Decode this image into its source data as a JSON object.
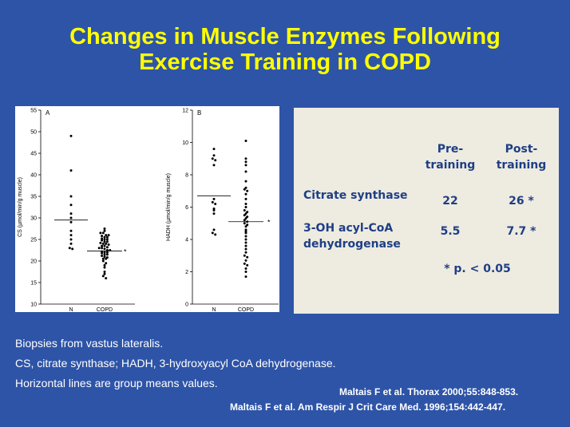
{
  "slide": {
    "title_line1": "Changes in Muscle Enzymes Following",
    "title_line2": "Exercise Training in COPD",
    "notes": [
      "Biopsies from vastus lateralis.",
      "CS, citrate synthase;  HADH,  3-hydroxyacyl CoA dehydrogenase.",
      "Horizontal  lines are group  means values."
    ],
    "refs": [
      "Maltais F et al.   Thorax 2000;55:848-853.",
      "Maltais F et al. Am Respir J Crit Care Med. 1996;154:442-447."
    ]
  },
  "table": {
    "col_pre_l1": "Pre-",
    "col_pre_l2": "training",
    "col_post_l1": "Post-",
    "col_post_l2": "training",
    "rows": [
      {
        "label_l1": "Citrate synthase",
        "label_l2": "",
        "pre": "22",
        "post": "26 *"
      },
      {
        "label_l1": "3-OH acyl-CoA",
        "label_l2": "dehydrogenase",
        "pre": "5.5",
        "post": "7.7 *"
      }
    ],
    "footnote": "* p. < 0.05"
  },
  "chart_data": [
    {
      "type": "scatter",
      "panel_label": "A",
      "ylabel": "CS (µmol/min/g muscle)",
      "ylim": [
        10,
        55
      ],
      "yticks": [
        10,
        15,
        20,
        25,
        30,
        35,
        40,
        45,
        50,
        55
      ],
      "categories": [
        "N",
        "COPD"
      ],
      "series": [
        {
          "values": [
            49,
            41,
            35,
            33,
            31,
            30,
            29,
            27,
            26,
            25,
            24,
            23,
            22.8
          ]
        },
        {
          "values": [
            27.5,
            27,
            26.5,
            26.5,
            26,
            26,
            25.8,
            25.5,
            25.5,
            25.2,
            25,
            25,
            24.8,
            24.5,
            24.5,
            24.2,
            24,
            24,
            23.8,
            23.5,
            23.5,
            23.2,
            23,
            23,
            22.8,
            22.5,
            22.5,
            22.2,
            22,
            22,
            21.8,
            21.5,
            21.5,
            21.2,
            21,
            20.8,
            20.5,
            20.5,
            20,
            19.5,
            19,
            18.5,
            17.5,
            17,
            16.5,
            16
          ]
        }
      ],
      "means": [
        29.5,
        22.3
      ],
      "annotation": "*"
    },
    {
      "type": "scatter",
      "panel_label": "B",
      "ylabel": "HADH (µmol/min/g muscle)",
      "ylim": [
        0,
        12
      ],
      "yticks": [
        0,
        2,
        4,
        6,
        8,
        10,
        12
      ],
      "categories": [
        "N",
        "COPD"
      ],
      "series": [
        {
          "values": [
            9.6,
            9.2,
            9,
            8.9,
            8.6,
            6.5,
            6.3,
            6.2,
            5.9,
            5.8,
            5.6,
            4.6,
            4.4,
            4.3
          ]
        },
        {
          "values": [
            10.1,
            9,
            8.8,
            8.6,
            8.2,
            7.6,
            7.2,
            7.1,
            7,
            6.8,
            6.5,
            6.2,
            6,
            5.8,
            5.7,
            5.6,
            5.5,
            5.4,
            5.3,
            5.2,
            5.1,
            5,
            4.9,
            4.8,
            4.6,
            4.5,
            4.4,
            4.2,
            4,
            3.8,
            3.6,
            3.4,
            3.2,
            3,
            2.9,
            2.7,
            2.5,
            2.4,
            2.2,
            2,
            1.7
          ]
        }
      ],
      "means": [
        6.7,
        5.1
      ],
      "annotation": "*"
    }
  ]
}
